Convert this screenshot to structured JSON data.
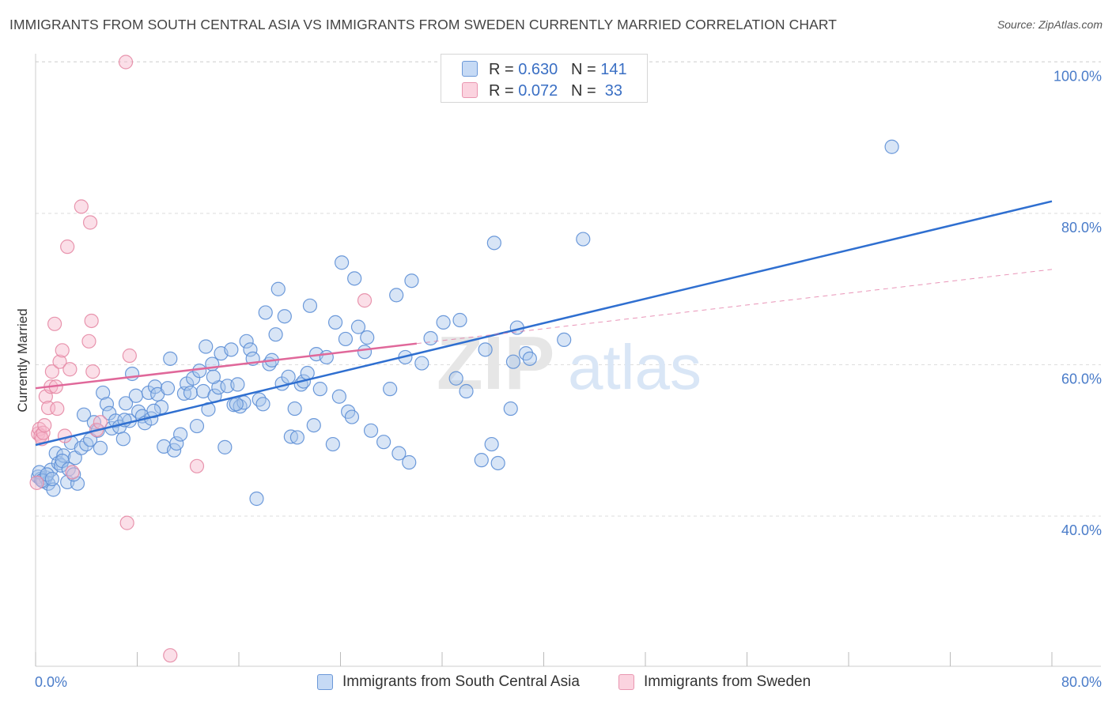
{
  "title": "IMMIGRANTS FROM SOUTH CENTRAL ASIA VS IMMIGRANTS FROM SWEDEN CURRENTLY MARRIED CORRELATION CHART",
  "source": "Source: ZipAtlas.com",
  "watermark": {
    "zip": "ZIP",
    "atlas": "atlas"
  },
  "legend": {
    "rows": [
      {
        "r_label": "R =",
        "r_value": "0.630",
        "n_label": "N =",
        "n_value": "141"
      },
      {
        "r_label": "R =",
        "r_value": "0.072",
        "n_label": "N =",
        "n_value": "33"
      }
    ]
  },
  "bottom_legend": [
    "Immigrants from South Central Asia",
    "Immigrants from Sweden"
  ],
  "colors": {
    "blue_fill": "#a9c6ec",
    "blue_stroke": "#5d8fd6",
    "blue_line": "#2f6fd0",
    "pink_fill": "#f7b9cb",
    "pink_stroke": "#e58aa5",
    "pink_line": "#e0689a",
    "tick_text": "#4a7cc9",
    "grid": "#dddddd"
  },
  "chart_data": {
    "type": "scatter",
    "title": "IMMIGRANTS FROM SOUTH CENTRAL ASIA VS IMMIGRANTS FROM SWEDEN CURRENTLY MARRIED CORRELATION CHART",
    "xlabel": "",
    "ylabel": "Currently Married",
    "xlim": [
      0,
      80
    ],
    "ylim": [
      21.5,
      102
    ],
    "x_ticks": [
      "0.0%",
      "80.0%"
    ],
    "y_ticks": [
      {
        "value": 40,
        "label": "40.0%"
      },
      {
        "value": 60,
        "label": "60.0%"
      },
      {
        "value": 80,
        "label": "80.0%"
      },
      {
        "value": 100,
        "label": "100.0%"
      }
    ],
    "grid": "horizontal dashed",
    "series": [
      {
        "name": "Immigrants from South Central Asia",
        "color": "#a9c6ec",
        "r": 0.63,
        "n": 141,
        "trendline": {
          "x": [
            0,
            80
          ],
          "y": [
            49.4,
            81.6
          ],
          "style": "solid"
        },
        "points": [
          [
            0.2,
            45.2
          ],
          [
            0.4,
            44.9
          ],
          [
            0.6,
            44.6
          ],
          [
            0.8,
            45.1
          ],
          [
            1.0,
            44.3
          ],
          [
            1.2,
            46.1
          ],
          [
            1.4,
            43.5
          ],
          [
            1.6,
            48.3
          ],
          [
            1.8,
            47.0
          ],
          [
            2.0,
            46.7
          ],
          [
            2.2,
            48.0
          ],
          [
            2.5,
            44.5
          ],
          [
            2.8,
            49.7
          ],
          [
            3.1,
            47.7
          ],
          [
            3.3,
            44.3
          ],
          [
            3.6,
            49.0
          ],
          [
            3.8,
            53.4
          ],
          [
            4.0,
            49.5
          ],
          [
            4.3,
            50.1
          ],
          [
            4.6,
            52.4
          ],
          [
            4.9,
            51.3
          ],
          [
            5.1,
            49.0
          ],
          [
            5.3,
            56.3
          ],
          [
            5.6,
            54.8
          ],
          [
            5.8,
            53.6
          ],
          [
            6.0,
            51.6
          ],
          [
            6.3,
            52.6
          ],
          [
            6.6,
            51.8
          ],
          [
            6.9,
            50.2
          ],
          [
            7.1,
            54.9
          ],
          [
            7.4,
            52.6
          ],
          [
            7.6,
            58.8
          ],
          [
            7.9,
            55.9
          ],
          [
            8.1,
            53.8
          ],
          [
            8.4,
            53.2
          ],
          [
            8.6,
            52.3
          ],
          [
            8.9,
            56.3
          ],
          [
            9.1,
            52.9
          ],
          [
            9.4,
            57.1
          ],
          [
            9.6,
            56.1
          ],
          [
            9.9,
            54.4
          ],
          [
            10.1,
            49.2
          ],
          [
            10.4,
            56.9
          ],
          [
            10.6,
            60.8
          ],
          [
            10.9,
            48.7
          ],
          [
            11.1,
            49.6
          ],
          [
            11.4,
            50.8
          ],
          [
            11.7,
            56.2
          ],
          [
            11.9,
            57.5
          ],
          [
            12.2,
            56.3
          ],
          [
            12.4,
            58.2
          ],
          [
            12.7,
            51.9
          ],
          [
            12.9,
            59.2
          ],
          [
            13.2,
            56.5
          ],
          [
            13.4,
            62.4
          ],
          [
            13.6,
            54.1
          ],
          [
            13.9,
            60.1
          ],
          [
            14.1,
            55.9
          ],
          [
            14.4,
            57.0
          ],
          [
            14.6,
            61.5
          ],
          [
            14.9,
            49.1
          ],
          [
            15.1,
            57.2
          ],
          [
            15.4,
            62.0
          ],
          [
            15.6,
            54.7
          ],
          [
            15.9,
            57.4
          ],
          [
            16.1,
            54.5
          ],
          [
            16.4,
            55.0
          ],
          [
            16.6,
            63.1
          ],
          [
            16.9,
            62.0
          ],
          [
            17.1,
            60.8
          ],
          [
            17.4,
            42.3
          ],
          [
            17.6,
            55.4
          ],
          [
            17.9,
            54.8
          ],
          [
            18.1,
            66.9
          ],
          [
            18.4,
            60.1
          ],
          [
            18.6,
            60.6
          ],
          [
            18.9,
            64.0
          ],
          [
            19.1,
            70.0
          ],
          [
            19.4,
            57.5
          ],
          [
            19.6,
            66.4
          ],
          [
            19.9,
            58.4
          ],
          [
            20.1,
            50.5
          ],
          [
            20.4,
            54.2
          ],
          [
            20.6,
            50.4
          ],
          [
            20.9,
            57.4
          ],
          [
            21.1,
            57.8
          ],
          [
            21.4,
            58.9
          ],
          [
            21.6,
            67.8
          ],
          [
            21.9,
            52.0
          ],
          [
            22.1,
            61.4
          ],
          [
            22.4,
            56.8
          ],
          [
            22.9,
            61.0
          ],
          [
            23.4,
            49.5
          ],
          [
            23.6,
            65.6
          ],
          [
            23.9,
            55.8
          ],
          [
            24.1,
            73.5
          ],
          [
            24.4,
            63.4
          ],
          [
            24.6,
            53.8
          ],
          [
            24.9,
            53.1
          ],
          [
            25.1,
            71.4
          ],
          [
            25.4,
            65.0
          ],
          [
            25.9,
            61.7
          ],
          [
            26.1,
            63.6
          ],
          [
            26.4,
            51.3
          ],
          [
            27.4,
            49.8
          ],
          [
            27.9,
            56.8
          ],
          [
            28.4,
            69.2
          ],
          [
            28.6,
            48.3
          ],
          [
            29.1,
            61.0
          ],
          [
            29.4,
            47.1
          ],
          [
            29.6,
            71.1
          ],
          [
            30.4,
            60.2
          ],
          [
            31.1,
            63.5
          ],
          [
            32.1,
            65.6
          ],
          [
            33.1,
            58.2
          ],
          [
            33.4,
            65.9
          ],
          [
            33.9,
            56.5
          ],
          [
            35.1,
            47.4
          ],
          [
            35.4,
            62.0
          ],
          [
            35.9,
            49.5
          ],
          [
            36.1,
            76.1
          ],
          [
            36.4,
            47.0
          ],
          [
            37.4,
            54.2
          ],
          [
            37.6,
            60.4
          ],
          [
            37.9,
            64.9
          ],
          [
            38.6,
            61.5
          ],
          [
            38.9,
            60.8
          ],
          [
            41.6,
            63.3
          ],
          [
            43.1,
            76.6
          ],
          [
            67.4,
            88.8
          ],
          [
            0.3,
            45.8
          ],
          [
            0.5,
            44.7
          ],
          [
            0.9,
            45.5
          ],
          [
            1.3,
            44.9
          ],
          [
            2.1,
            47.3
          ],
          [
            2.6,
            46.2
          ],
          [
            3.0,
            45.5
          ],
          [
            7.0,
            52.7
          ],
          [
            9.3,
            53.9
          ],
          [
            14.0,
            58.4
          ],
          [
            15.8,
            54.8
          ]
        ]
      },
      {
        "name": "Immigrants from Sweden",
        "color": "#f7b9cb",
        "r": 0.072,
        "n": 33,
        "trendline": {
          "x": [
            0,
            30
          ],
          "y": [
            56.9,
            62.8
          ],
          "style": "solid",
          "extended": {
            "x": [
              30,
              80
            ],
            "y": [
              62.8,
              72.6
            ],
            "style": "dashed"
          }
        },
        "points": [
          [
            0.1,
            44.4
          ],
          [
            0.2,
            50.9
          ],
          [
            0.3,
            51.5
          ],
          [
            0.4,
            50.6
          ],
          [
            0.5,
            50.2
          ],
          [
            0.6,
            51.0
          ],
          [
            0.7,
            52.0
          ],
          [
            0.8,
            55.8
          ],
          [
            1.0,
            54.3
          ],
          [
            1.2,
            57.1
          ],
          [
            1.3,
            59.1
          ],
          [
            1.5,
            65.4
          ],
          [
            1.6,
            57.1
          ],
          [
            1.7,
            54.2
          ],
          [
            1.9,
            60.4
          ],
          [
            2.1,
            61.9
          ],
          [
            2.3,
            50.6
          ],
          [
            2.5,
            75.6
          ],
          [
            2.7,
            59.4
          ],
          [
            2.9,
            45.8
          ],
          [
            3.6,
            80.9
          ],
          [
            4.2,
            63.1
          ],
          [
            4.3,
            78.8
          ],
          [
            4.4,
            65.8
          ],
          [
            4.5,
            59.1
          ],
          [
            4.8,
            51.4
          ],
          [
            5.1,
            52.4
          ],
          [
            7.1,
            100.0
          ],
          [
            7.2,
            39.1
          ],
          [
            7.4,
            61.2
          ],
          [
            10.6,
            21.6
          ],
          [
            12.7,
            46.6
          ],
          [
            25.9,
            68.5
          ]
        ]
      }
    ]
  }
}
